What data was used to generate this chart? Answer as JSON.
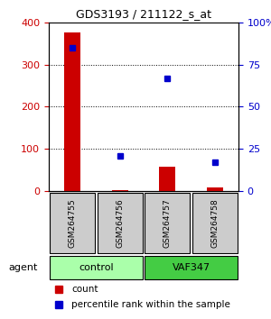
{
  "title": "GDS3193 / 211122_s_at",
  "samples": [
    "GSM264755",
    "GSM264756",
    "GSM264757",
    "GSM264758"
  ],
  "bar_values": [
    375,
    3,
    57,
    8
  ],
  "scatter_values": [
    85,
    21,
    67,
    17
  ],
  "bar_color": "#cc0000",
  "scatter_color": "#0000cc",
  "ylim_left": [
    0,
    400
  ],
  "ylim_right": [
    0,
    100
  ],
  "yticks_left": [
    0,
    100,
    200,
    300,
    400
  ],
  "yticks_right": [
    0,
    25,
    50,
    75,
    100
  ],
  "yticklabels_right": [
    "0",
    "25",
    "50",
    "75",
    "100%"
  ],
  "groups": [
    {
      "label": "control",
      "samples": [
        0,
        1
      ],
      "color": "#aaffaa"
    },
    {
      "label": "VAF347",
      "samples": [
        2,
        3
      ],
      "color": "#44cc44"
    }
  ],
  "group_row_color": "#lightgray",
  "sample_box_color": "#cccccc",
  "agent_label": "agent",
  "legend_count_label": "count",
  "legend_pct_label": "percentile rank within the sample",
  "background_color": "#ffffff"
}
